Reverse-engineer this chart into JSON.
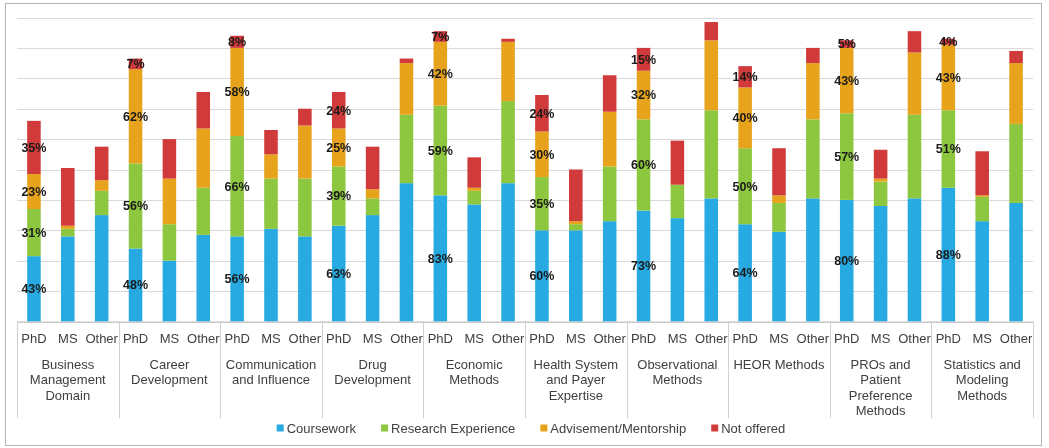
{
  "chart_data": [
    {
      "type": "bar",
      "stacked": true,
      "categories": [
        "PhD",
        "MS",
        "Other"
      ],
      "xlabel": "Business Management Domain",
      "ylim": [
        0,
        200
      ],
      "yticks": [
        {
          "value": 0,
          "label": null
        },
        {
          "value": 20,
          "label": null
        },
        {
          "value": 40,
          "label": null
        },
        {
          "value": 60,
          "label": null
        },
        {
          "value": 80,
          "label": null
        },
        {
          "value": 100,
          "label": null
        },
        {
          "value": 120,
          "label": null
        },
        {
          "value": 140,
          "label": null
        },
        {
          "value": 160,
          "label": null
        },
        {
          "value": 180,
          "label": null
        },
        {
          "value": 200,
          "label": null
        }
      ],
      "grid": "y",
      "tick_labels": "x",
      "legend": "bottom",
      "series": [
        {
          "name": "Coursework",
          "color": "#27a9e1",
          "values": [
            43,
            56,
            70
          ],
          "value_labels": [
            "43%",
            null,
            null
          ]
        },
        {
          "name": "Research Experience",
          "color": "#8dc63f",
          "values": [
            31,
            5,
            16
          ],
          "value_labels": [
            "31%",
            null,
            null
          ]
        },
        {
          "name": "Advisement/Mentorship",
          "color": "#e6a31b",
          "values": [
            23,
            2,
            7
          ],
          "value_labels": [
            "23%",
            null,
            null
          ]
        },
        {
          "name": "Not offered",
          "color": "#d03a3a",
          "values": [
            35,
            38,
            22
          ],
          "value_labels": [
            "35%",
            null,
            null
          ]
        }
      ]
    },
    {
      "type": "bar",
      "stacked": true,
      "categories": [
        "PhD",
        "MS",
        "Other"
      ],
      "xlabel": "Career Development",
      "ylim": [
        0,
        200
      ],
      "yticks": [
        {
          "value": 0,
          "label": null
        },
        {
          "value": 20,
          "label": null
        },
        {
          "value": 40,
          "label": null
        },
        {
          "value": 60,
          "label": null
        },
        {
          "value": 80,
          "label": null
        },
        {
          "value": 100,
          "label": null
        },
        {
          "value": 120,
          "label": null
        },
        {
          "value": 140,
          "label": null
        },
        {
          "value": 160,
          "label": null
        },
        {
          "value": 180,
          "label": null
        },
        {
          "value": 200,
          "label": null
        }
      ],
      "grid": "y",
      "tick_labels": "x",
      "series": [
        {
          "color": "#27a9e1",
          "values": [
            48,
            40,
            57
          ],
          "value_labels": [
            "48%",
            null,
            null
          ]
        },
        {
          "color": "#8dc63f",
          "values": [
            56,
            24,
            31
          ],
          "value_labels": [
            "56%",
            null,
            null
          ]
        },
        {
          "color": "#e6a31b",
          "values": [
            62,
            30,
            39
          ],
          "value_labels": [
            "62%",
            null,
            null
          ]
        },
        {
          "color": "#d03a3a",
          "values": [
            7,
            26,
            24
          ],
          "value_labels": [
            "7%",
            null,
            null
          ]
        }
      ]
    },
    {
      "type": "bar",
      "stacked": true,
      "categories": [
        "PhD",
        "MS",
        "Other"
      ],
      "xlabel": "Communication and Influence",
      "ylim": [
        0,
        200
      ],
      "yticks": [
        {
          "value": 0,
          "label": null
        },
        {
          "value": 20,
          "label": null
        },
        {
          "value": 40,
          "label": null
        },
        {
          "value": 60,
          "label": null
        },
        {
          "value": 80,
          "label": null
        },
        {
          "value": 100,
          "label": null
        },
        {
          "value": 120,
          "label": null
        },
        {
          "value": 140,
          "label": null
        },
        {
          "value": 160,
          "label": null
        },
        {
          "value": 180,
          "label": null
        },
        {
          "value": 200,
          "label": null
        }
      ],
      "grid": "y",
      "tick_labels": "x",
      "series": [
        {
          "color": "#27a9e1",
          "values": [
            56,
            61,
            56
          ],
          "value_labels": [
            "56%",
            null,
            null
          ]
        },
        {
          "color": "#8dc63f",
          "values": [
            66,
            33,
            38
          ],
          "value_labels": [
            "66%",
            null,
            null
          ]
        },
        {
          "color": "#e6a31b",
          "values": [
            58,
            16,
            35
          ],
          "value_labels": [
            "58%",
            null,
            null
          ]
        },
        {
          "color": "#d03a3a",
          "values": [
            8,
            16,
            11
          ],
          "value_labels": [
            "8%",
            null,
            null
          ]
        }
      ]
    },
    {
      "type": "bar",
      "stacked": true,
      "categories": [
        "PhD",
        "MS",
        "Other"
      ],
      "xlabel": "Drug Development",
      "ylim": [
        0,
        200
      ],
      "yticks": [
        {
          "value": 0,
          "label": null
        },
        {
          "value": 20,
          "label": null
        },
        {
          "value": 40,
          "label": null
        },
        {
          "value": 60,
          "label": null
        },
        {
          "value": 80,
          "label": null
        },
        {
          "value": 100,
          "label": null
        },
        {
          "value": 120,
          "label": null
        },
        {
          "value": 140,
          "label": null
        },
        {
          "value": 160,
          "label": null
        },
        {
          "value": 180,
          "label": null
        },
        {
          "value": 200,
          "label": null
        }
      ],
      "grid": "y",
      "tick_labels": "x",
      "series": [
        {
          "color": "#27a9e1",
          "values": [
            63,
            70,
            91
          ],
          "value_labels": [
            "63%",
            null,
            null
          ]
        },
        {
          "color": "#8dc63f",
          "values": [
            39,
            11,
            45
          ],
          "value_labels": [
            "39%",
            null,
            null
          ]
        },
        {
          "color": "#e6a31b",
          "values": [
            25,
            6,
            34
          ],
          "value_labels": [
            "25%",
            null,
            null
          ]
        },
        {
          "color": "#d03a3a",
          "values": [
            24,
            28,
            3
          ],
          "value_labels": [
            "24%",
            null,
            null
          ]
        }
      ]
    },
    {
      "type": "bar",
      "stacked": true,
      "categories": [
        "PhD",
        "MS",
        "Other"
      ],
      "xlabel": "Economic Methods",
      "ylim": [
        0,
        200
      ],
      "yticks": [
        {
          "value": 0,
          "label": null
        },
        {
          "value": 20,
          "label": null
        },
        {
          "value": 40,
          "label": null
        },
        {
          "value": 60,
          "label": null
        },
        {
          "value": 80,
          "label": null
        },
        {
          "value": 100,
          "label": null
        },
        {
          "value": 120,
          "label": null
        },
        {
          "value": 140,
          "label": null
        },
        {
          "value": 160,
          "label": null
        },
        {
          "value": 180,
          "label": null
        },
        {
          "value": 200,
          "label": null
        }
      ],
      "grid": "y",
      "tick_labels": "x",
      "series": [
        {
          "color": "#27a9e1",
          "values": [
            83,
            77,
            91
          ],
          "value_labels": [
            "83%",
            null,
            null
          ]
        },
        {
          "color": "#8dc63f",
          "values": [
            59,
            9,
            54
          ],
          "value_labels": [
            "59%",
            null,
            null
          ]
        },
        {
          "color": "#e6a31b",
          "values": [
            42,
            2,
            39
          ],
          "value_labels": [
            "42%",
            null,
            null
          ]
        },
        {
          "color": "#d03a3a",
          "values": [
            7,
            20,
            2
          ],
          "value_labels": [
            "7%",
            null,
            null
          ]
        }
      ]
    },
    {
      "type": "bar",
      "stacked": true,
      "categories": [
        "PhD",
        "MS",
        "Other"
      ],
      "xlabel": "Health System and Payer Expertise",
      "ylim": [
        0,
        200
      ],
      "yticks": [
        {
          "value": 0,
          "label": null
        },
        {
          "value": 20,
          "label": null
        },
        {
          "value": 40,
          "label": null
        },
        {
          "value": 60,
          "label": null
        },
        {
          "value": 80,
          "label": null
        },
        {
          "value": 100,
          "label": null
        },
        {
          "value": 120,
          "label": null
        },
        {
          "value": 140,
          "label": null
        },
        {
          "value": 160,
          "label": null
        },
        {
          "value": 180,
          "label": null
        },
        {
          "value": 200,
          "label": null
        }
      ],
      "grid": "y",
      "tick_labels": "x",
      "series": [
        {
          "color": "#27a9e1",
          "values": [
            60,
            60,
            66
          ],
          "value_labels": [
            "60%",
            null,
            null
          ]
        },
        {
          "color": "#8dc63f",
          "values": [
            35,
            4,
            36
          ],
          "value_labels": [
            "35%",
            null,
            null
          ]
        },
        {
          "color": "#e6a31b",
          "values": [
            30,
            2,
            36
          ],
          "value_labels": [
            "30%",
            null,
            null
          ]
        },
        {
          "color": "#d03a3a",
          "values": [
            24,
            34,
            24
          ],
          "value_labels": [
            "24%",
            null,
            null
          ]
        }
      ]
    },
    {
      "type": "bar",
      "stacked": true,
      "categories": [
        "PhD",
        "MS",
        "Other"
      ],
      "xlabel": "Observational Methods",
      "ylim": [
        0,
        200
      ],
      "yticks": [
        {
          "value": 0,
          "label": null
        },
        {
          "value": 20,
          "label": null
        },
        {
          "value": 40,
          "label": null
        },
        {
          "value": 60,
          "label": null
        },
        {
          "value": 80,
          "label": null
        },
        {
          "value": 100,
          "label": null
        },
        {
          "value": 120,
          "label": null
        },
        {
          "value": 140,
          "label": null
        },
        {
          "value": 160,
          "label": null
        },
        {
          "value": 180,
          "label": null
        },
        {
          "value": 200,
          "label": null
        }
      ],
      "grid": "y",
      "tick_labels": "x",
      "series": [
        {
          "color": "#27a9e1",
          "values": [
            73,
            68,
            81
          ],
          "value_labels": [
            "73%",
            null,
            null
          ]
        },
        {
          "color": "#8dc63f",
          "values": [
            60,
            22,
            58
          ],
          "value_labels": [
            "60%",
            null,
            null
          ]
        },
        {
          "color": "#e6a31b",
          "values": [
            32,
            0,
            46
          ],
          "value_labels": [
            "32%",
            null,
            null
          ]
        },
        {
          "color": "#d03a3a",
          "values": [
            15,
            29,
            12
          ],
          "value_labels": [
            "15%",
            null,
            null
          ]
        }
      ]
    },
    {
      "type": "bar",
      "stacked": true,
      "categories": [
        "PhD",
        "MS",
        "Other"
      ],
      "xlabel": "HEOR Methods",
      "ylim": [
        0,
        200
      ],
      "yticks": [
        {
          "value": 0,
          "label": null
        },
        {
          "value": 20,
          "label": null
        },
        {
          "value": 40,
          "label": null
        },
        {
          "value": 60,
          "label": null
        },
        {
          "value": 80,
          "label": null
        },
        {
          "value": 100,
          "label": null
        },
        {
          "value": 120,
          "label": null
        },
        {
          "value": 140,
          "label": null
        },
        {
          "value": 160,
          "label": null
        },
        {
          "value": 180,
          "label": null
        },
        {
          "value": 200,
          "label": null
        }
      ],
      "grid": "y",
      "tick_labels": "x",
      "series": [
        {
          "color": "#27a9e1",
          "values": [
            64,
            59,
            81
          ],
          "value_labels": [
            "64%",
            null,
            null
          ]
        },
        {
          "color": "#8dc63f",
          "values": [
            50,
            19,
            52
          ],
          "value_labels": [
            "50%",
            null,
            null
          ]
        },
        {
          "color": "#e6a31b",
          "values": [
            40,
            5,
            37
          ],
          "value_labels": [
            "40%",
            null,
            null
          ]
        },
        {
          "color": "#d03a3a",
          "values": [
            14,
            31,
            10
          ],
          "value_labels": [
            "14%",
            null,
            null
          ]
        }
      ]
    },
    {
      "type": "bar",
      "stacked": true,
      "categories": [
        "PhD",
        "MS",
        "Other"
      ],
      "xlabel": "PROs and Patient Preference Methods",
      "ylim": [
        0,
        200
      ],
      "yticks": [
        {
          "value": 0,
          "label": null
        },
        {
          "value": 20,
          "label": null
        },
        {
          "value": 40,
          "label": null
        },
        {
          "value": 60,
          "label": null
        },
        {
          "value": 80,
          "label": null
        },
        {
          "value": 100,
          "label": null
        },
        {
          "value": 120,
          "label": null
        },
        {
          "value": 140,
          "label": null
        },
        {
          "value": 160,
          "label": null
        },
        {
          "value": 180,
          "label": null
        },
        {
          "value": 200,
          "label": null
        }
      ],
      "grid": "y",
      "tick_labels": "x",
      "series": [
        {
          "color": "#27a9e1",
          "values": [
            80,
            76,
            81
          ],
          "value_labels": [
            "80%",
            null,
            null
          ]
        },
        {
          "color": "#8dc63f",
          "values": [
            57,
            16,
            55
          ],
          "value_labels": [
            "57%",
            null,
            null
          ]
        },
        {
          "color": "#e6a31b",
          "values": [
            43,
            2,
            41
          ],
          "value_labels": [
            "43%",
            null,
            null
          ]
        },
        {
          "color": "#d03a3a",
          "values": [
            5,
            19,
            14
          ],
          "value_labels": [
            "5%",
            null,
            null
          ]
        }
      ]
    },
    {
      "type": "bar",
      "stacked": true,
      "categories": [
        "PhD",
        "MS",
        "Other"
      ],
      "xlabel": "Statistics and Modeling Methods",
      "ylim": [
        0,
        200
      ],
      "yticks": [
        {
          "value": 0,
          "label": null
        },
        {
          "value": 20,
          "label": null
        },
        {
          "value": 40,
          "label": null
        },
        {
          "value": 60,
          "label": null
        },
        {
          "value": 80,
          "label": null
        },
        {
          "value": 100,
          "label": null
        },
        {
          "value": 120,
          "label": null
        },
        {
          "value": 140,
          "label": null
        },
        {
          "value": 160,
          "label": null
        },
        {
          "value": 180,
          "label": null
        },
        {
          "value": 200,
          "label": null
        }
      ],
      "grid": "y",
      "tick_labels": "x",
      "series": [
        {
          "color": "#27a9e1",
          "values": [
            88,
            66,
            78
          ],
          "value_labels": [
            "88%",
            null,
            null
          ]
        },
        {
          "color": "#8dc63f",
          "values": [
            51,
            16,
            52
          ],
          "value_labels": [
            "51%",
            null,
            null
          ]
        },
        {
          "color": "#e6a31b",
          "values": [
            43,
            1,
            40
          ],
          "value_labels": [
            "43%",
            null,
            null
          ]
        },
        {
          "color": "#d03a3a",
          "values": [
            4,
            29,
            8
          ],
          "value_labels": [
            "4%",
            null,
            null
          ]
        }
      ]
    }
  ]
}
